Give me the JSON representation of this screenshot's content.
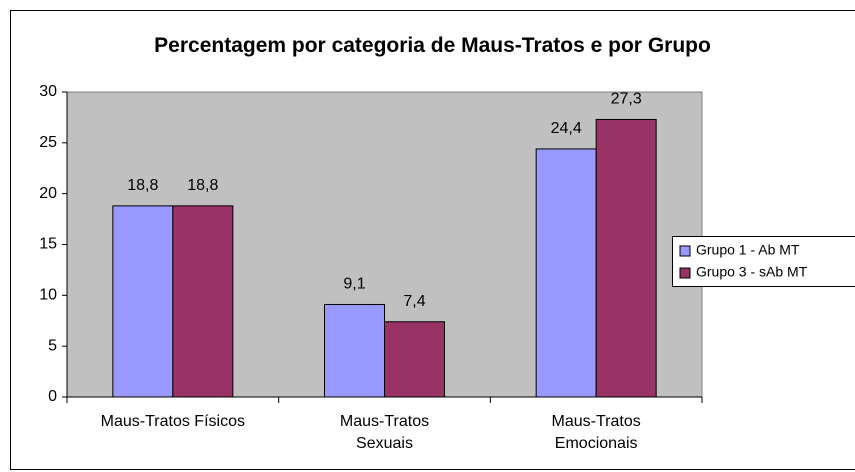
{
  "chart_data": {
    "type": "bar",
    "title": "Percentagem por categoria de Maus-Tratos e por Grupo",
    "categories": [
      "Maus-Tratos Físicos",
      "Maus-Tratos Sexuais",
      "Maus-Tratos Emocionais"
    ],
    "series": [
      {
        "name": "Grupo 1 - Ab MT",
        "color": "#9999ff",
        "values": [
          18.8,
          9.1,
          24.4
        ],
        "value_labels": [
          "18,8",
          "9,1",
          "24,4"
        ]
      },
      {
        "name": "Grupo 3 - sAb MT",
        "color": "#993366",
        "values": [
          18.8,
          7.4,
          27.3
        ],
        "value_labels": [
          "18,8",
          "7,4",
          "27,3"
        ]
      }
    ],
    "ylim": [
      0,
      30
    ],
    "yticks": [
      0,
      5,
      10,
      15,
      20,
      25,
      30
    ],
    "grid": false,
    "legend": "right"
  }
}
